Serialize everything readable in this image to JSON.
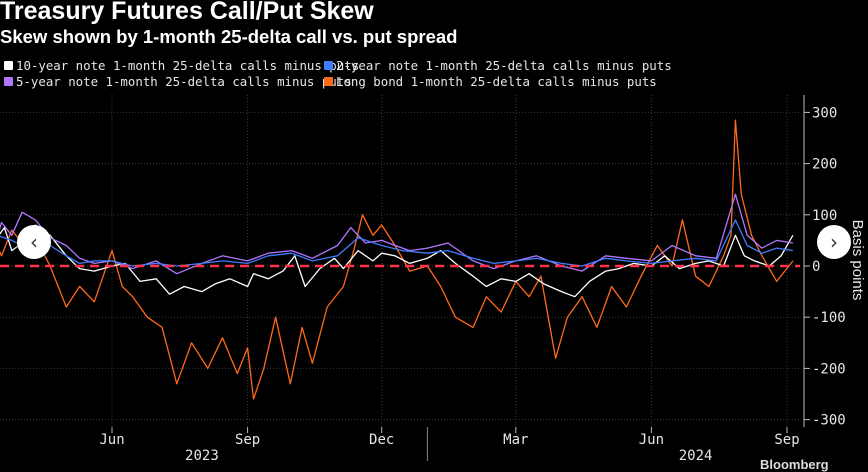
{
  "header": {
    "title": "Treasury Futures Call/Put Skew",
    "subtitle": "Skew shown by 1-month 25-delta call vs. put spread"
  },
  "navigation": {
    "prev_icon": "‹",
    "next_icon": "›"
  },
  "source": "Bloomberg",
  "chart_data": {
    "type": "line",
    "ylabel": "Basis points",
    "ylim": [
      -320,
      330
    ],
    "yticks": [
      300,
      200,
      100,
      0,
      -100,
      -200,
      -300
    ],
    "xlim": [
      "2023-03-01",
      "2024-09-10"
    ],
    "x_ticks": [
      {
        "date": "2023-06-01",
        "label": "Jun"
      },
      {
        "date": "2023-09-01",
        "label": "Sep"
      },
      {
        "date": "2023-12-01",
        "label": "Dec"
      },
      {
        "date": "2024-03-01",
        "label": "Mar"
      },
      {
        "date": "2024-06-01",
        "label": "Jun"
      },
      {
        "date": "2024-09-01",
        "label": "Sep"
      }
    ],
    "year_labels": [
      {
        "date": "2023-08-01",
        "label": "2023"
      },
      {
        "date": "2024-07-01",
        "label": "2024"
      }
    ],
    "reference_line": {
      "y": 0,
      "color": "#ff3347",
      "style": "dashed"
    },
    "series": [
      {
        "name": "10-year note 1-month 25-delta calls minus puts",
        "color": "#ffffff",
        "points": [
          [
            "2023-03-01",
            110
          ],
          [
            "2023-03-06",
            55
          ],
          [
            "2023-03-10",
            10
          ],
          [
            "2023-03-15",
            55
          ],
          [
            "2023-03-20",
            75
          ],
          [
            "2023-03-25",
            30
          ],
          [
            "2023-04-01",
            45
          ],
          [
            "2023-04-10",
            80
          ],
          [
            "2023-04-20",
            60
          ],
          [
            "2023-05-01",
            20
          ],
          [
            "2023-05-10",
            -5
          ],
          [
            "2023-05-20",
            -10
          ],
          [
            "2023-06-01",
            0
          ],
          [
            "2023-06-10",
            5
          ],
          [
            "2023-06-20",
            -30
          ],
          [
            "2023-07-01",
            -25
          ],
          [
            "2023-07-10",
            -55
          ],
          [
            "2023-07-20",
            -40
          ],
          [
            "2023-08-01",
            -50
          ],
          [
            "2023-08-10",
            -35
          ],
          [
            "2023-08-20",
            -25
          ],
          [
            "2023-09-01",
            -40
          ],
          [
            "2023-09-05",
            -15
          ],
          [
            "2023-09-15",
            -25
          ],
          [
            "2023-09-25",
            -10
          ],
          [
            "2023-10-03",
            20
          ],
          [
            "2023-10-10",
            -40
          ],
          [
            "2023-10-20",
            -5
          ],
          [
            "2023-10-30",
            15
          ],
          [
            "2023-11-05",
            -5
          ],
          [
            "2023-11-15",
            30
          ],
          [
            "2023-11-25",
            10
          ],
          [
            "2023-12-01",
            25
          ],
          [
            "2023-12-10",
            20
          ],
          [
            "2023-12-20",
            5
          ],
          [
            "2024-01-01",
            15
          ],
          [
            "2024-01-10",
            30
          ],
          [
            "2024-01-20",
            5
          ],
          [
            "2024-02-01",
            -20
          ],
          [
            "2024-02-10",
            -40
          ],
          [
            "2024-02-20",
            -25
          ],
          [
            "2024-03-01",
            -30
          ],
          [
            "2024-03-10",
            -15
          ],
          [
            "2024-03-20",
            -35
          ],
          [
            "2024-04-01",
            -50
          ],
          [
            "2024-04-10",
            -60
          ],
          [
            "2024-04-20",
            -30
          ],
          [
            "2024-05-01",
            -10
          ],
          [
            "2024-05-10",
            -5
          ],
          [
            "2024-05-20",
            5
          ],
          [
            "2024-06-01",
            0
          ],
          [
            "2024-06-10",
            20
          ],
          [
            "2024-06-20",
            -5
          ],
          [
            "2024-07-01",
            5
          ],
          [
            "2024-07-10",
            10
          ],
          [
            "2024-07-20",
            0
          ],
          [
            "2024-07-28",
            60
          ],
          [
            "2024-08-03",
            20
          ],
          [
            "2024-08-10",
            10
          ],
          [
            "2024-08-20",
            0
          ],
          [
            "2024-08-28",
            20
          ],
          [
            "2024-09-05",
            60
          ]
        ]
      },
      {
        "name": "2-year note 1-month 25-delta calls minus puts",
        "color": "#3d7eff",
        "points": [
          [
            "2023-03-01",
            80
          ],
          [
            "2023-03-08",
            20
          ],
          [
            "2023-03-15",
            60
          ],
          [
            "2023-03-25",
            50
          ],
          [
            "2023-04-01",
            40
          ],
          [
            "2023-04-10",
            70
          ],
          [
            "2023-04-20",
            40
          ],
          [
            "2023-05-01",
            20
          ],
          [
            "2023-05-10",
            5
          ],
          [
            "2023-05-20",
            10
          ],
          [
            "2023-06-01",
            10
          ],
          [
            "2023-06-15",
            0
          ],
          [
            "2023-07-01",
            5
          ],
          [
            "2023-07-15",
            0
          ],
          [
            "2023-08-01",
            5
          ],
          [
            "2023-08-15",
            10
          ],
          [
            "2023-09-01",
            5
          ],
          [
            "2023-09-15",
            20
          ],
          [
            "2023-10-01",
            25
          ],
          [
            "2023-10-15",
            10
          ],
          [
            "2023-11-01",
            20
          ],
          [
            "2023-11-15",
            55
          ],
          [
            "2023-12-01",
            40
          ],
          [
            "2023-12-15",
            30
          ],
          [
            "2024-01-01",
            25
          ],
          [
            "2024-01-15",
            30
          ],
          [
            "2024-02-01",
            15
          ],
          [
            "2024-02-15",
            5
          ],
          [
            "2024-03-01",
            10
          ],
          [
            "2024-03-15",
            15
          ],
          [
            "2024-04-01",
            5
          ],
          [
            "2024-04-15",
            0
          ],
          [
            "2024-05-01",
            15
          ],
          [
            "2024-05-15",
            10
          ],
          [
            "2024-06-01",
            5
          ],
          [
            "2024-06-15",
            10
          ],
          [
            "2024-07-01",
            15
          ],
          [
            "2024-07-15",
            10
          ],
          [
            "2024-07-28",
            90
          ],
          [
            "2024-08-05",
            40
          ],
          [
            "2024-08-15",
            25
          ],
          [
            "2024-08-25",
            35
          ],
          [
            "2024-09-05",
            30
          ]
        ]
      },
      {
        "name": "5-year note 1-month 25-delta calls minus puts",
        "color": "#b077ff",
        "points": [
          [
            "2023-03-01",
            130
          ],
          [
            "2023-03-06",
            70
          ],
          [
            "2023-03-12",
            25
          ],
          [
            "2023-03-18",
            85
          ],
          [
            "2023-03-25",
            60
          ],
          [
            "2023-04-01",
            105
          ],
          [
            "2023-04-10",
            90
          ],
          [
            "2023-04-20",
            55
          ],
          [
            "2023-05-01",
            40
          ],
          [
            "2023-05-10",
            15
          ],
          [
            "2023-05-20",
            5
          ],
          [
            "2023-06-01",
            10
          ],
          [
            "2023-06-15",
            -5
          ],
          [
            "2023-07-01",
            10
          ],
          [
            "2023-07-15",
            -15
          ],
          [
            "2023-08-01",
            5
          ],
          [
            "2023-08-15",
            20
          ],
          [
            "2023-09-01",
            10
          ],
          [
            "2023-09-15",
            25
          ],
          [
            "2023-10-01",
            30
          ],
          [
            "2023-10-15",
            15
          ],
          [
            "2023-11-01",
            40
          ],
          [
            "2023-11-10",
            75
          ],
          [
            "2023-11-20",
            45
          ],
          [
            "2023-12-01",
            50
          ],
          [
            "2023-12-10",
            40
          ],
          [
            "2023-12-20",
            30
          ],
          [
            "2024-01-01",
            35
          ],
          [
            "2024-01-15",
            45
          ],
          [
            "2024-02-01",
            10
          ],
          [
            "2024-02-15",
            -5
          ],
          [
            "2024-03-01",
            10
          ],
          [
            "2024-03-15",
            20
          ],
          [
            "2024-04-01",
            0
          ],
          [
            "2024-04-15",
            -10
          ],
          [
            "2024-05-01",
            20
          ],
          [
            "2024-05-15",
            15
          ],
          [
            "2024-06-01",
            10
          ],
          [
            "2024-06-15",
            40
          ],
          [
            "2024-07-01",
            20
          ],
          [
            "2024-07-15",
            15
          ],
          [
            "2024-07-28",
            140
          ],
          [
            "2024-08-05",
            60
          ],
          [
            "2024-08-15",
            35
          ],
          [
            "2024-08-25",
            50
          ],
          [
            "2024-09-05",
            45
          ]
        ]
      },
      {
        "name": "Long bond 1-month 25-delta calls minus puts",
        "color": "#ff6a1a",
        "points": [
          [
            "2023-03-01",
            40
          ],
          [
            "2023-03-06",
            -10
          ],
          [
            "2023-03-12",
            60
          ],
          [
            "2023-03-18",
            20
          ],
          [
            "2023-03-25",
            70
          ],
          [
            "2023-04-01",
            45
          ],
          [
            "2023-04-10",
            55
          ],
          [
            "2023-04-20",
            0
          ],
          [
            "2023-05-01",
            -80
          ],
          [
            "2023-05-10",
            -40
          ],
          [
            "2023-05-20",
            -70
          ],
          [
            "2023-06-01",
            30
          ],
          [
            "2023-06-08",
            -40
          ],
          [
            "2023-06-15",
            -60
          ],
          [
            "2023-06-25",
            -100
          ],
          [
            "2023-07-05",
            -120
          ],
          [
            "2023-07-15",
            -230
          ],
          [
            "2023-07-25",
            -150
          ],
          [
            "2023-08-05",
            -200
          ],
          [
            "2023-08-15",
            -140
          ],
          [
            "2023-08-25",
            -210
          ],
          [
            "2023-09-01",
            -160
          ],
          [
            "2023-09-05",
            -260
          ],
          [
            "2023-09-12",
            -200
          ],
          [
            "2023-09-20",
            -100
          ],
          [
            "2023-09-30",
            -230
          ],
          [
            "2023-10-08",
            -120
          ],
          [
            "2023-10-15",
            -190
          ],
          [
            "2023-10-25",
            -80
          ],
          [
            "2023-11-05",
            -40
          ],
          [
            "2023-11-12",
            30
          ],
          [
            "2023-11-18",
            100
          ],
          [
            "2023-11-25",
            60
          ],
          [
            "2023-12-01",
            80
          ],
          [
            "2023-12-10",
            40
          ],
          [
            "2023-12-20",
            -10
          ],
          [
            "2024-01-01",
            0
          ],
          [
            "2024-01-10",
            -40
          ],
          [
            "2024-01-20",
            -100
          ],
          [
            "2024-02-01",
            -120
          ],
          [
            "2024-02-10",
            -60
          ],
          [
            "2024-02-20",
            -90
          ],
          [
            "2024-03-01",
            -30
          ],
          [
            "2024-03-10",
            -60
          ],
          [
            "2024-03-18",
            -20
          ],
          [
            "2024-03-28",
            -180
          ],
          [
            "2024-04-05",
            -100
          ],
          [
            "2024-04-15",
            -60
          ],
          [
            "2024-04-25",
            -120
          ],
          [
            "2024-05-05",
            -40
          ],
          [
            "2024-05-15",
            -80
          ],
          [
            "2024-05-25",
            -20
          ],
          [
            "2024-06-05",
            40
          ],
          [
            "2024-06-15",
            0
          ],
          [
            "2024-06-22",
            90
          ],
          [
            "2024-07-01",
            -20
          ],
          [
            "2024-07-10",
            -40
          ],
          [
            "2024-07-20",
            20
          ],
          [
            "2024-07-25",
            60
          ],
          [
            "2024-07-28",
            285
          ],
          [
            "2024-08-01",
            140
          ],
          [
            "2024-08-08",
            60
          ],
          [
            "2024-08-15",
            20
          ],
          [
            "2024-08-25",
            -30
          ],
          [
            "2024-09-05",
            10
          ]
        ]
      }
    ]
  }
}
